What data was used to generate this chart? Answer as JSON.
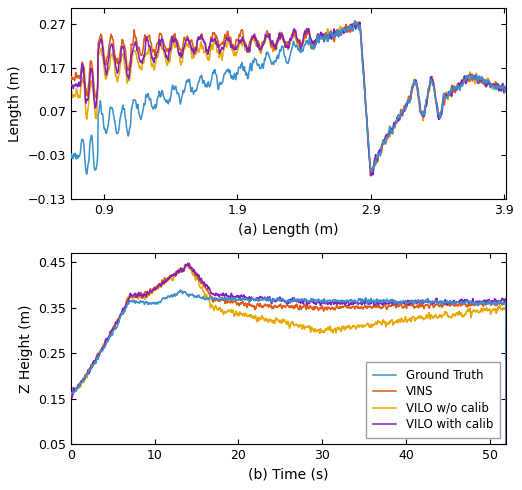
{
  "colors": {
    "ground_truth": "#3b8fcc",
    "vins": "#e05a10",
    "vilo_wo": "#e8a800",
    "vilo_w": "#8020c0"
  },
  "top_plot": {
    "xlabel": "(a) Length (m)",
    "ylabel": "Length (m)",
    "xlim": [
      0.65,
      3.92
    ],
    "ylim": [
      -0.13,
      0.305
    ],
    "yticks": [
      -0.13,
      -0.03,
      0.07,
      0.17,
      0.27
    ],
    "xticks": [
      0.9,
      1.9,
      2.9,
      3.9
    ]
  },
  "bottom_plot": {
    "xlabel": "(b) Time (s)",
    "ylabel": "Z Height (m)",
    "xlim": [
      0,
      52
    ],
    "ylim": [
      0.05,
      0.47
    ],
    "yticks": [
      0.05,
      0.15,
      0.25,
      0.35,
      0.45
    ],
    "xticks": [
      0,
      10,
      20,
      30,
      40,
      50
    ]
  },
  "legend_labels": [
    "Ground Truth",
    "VINS",
    "VILO w/o calib",
    "VILO with calib"
  ],
  "line_width": 1.1
}
